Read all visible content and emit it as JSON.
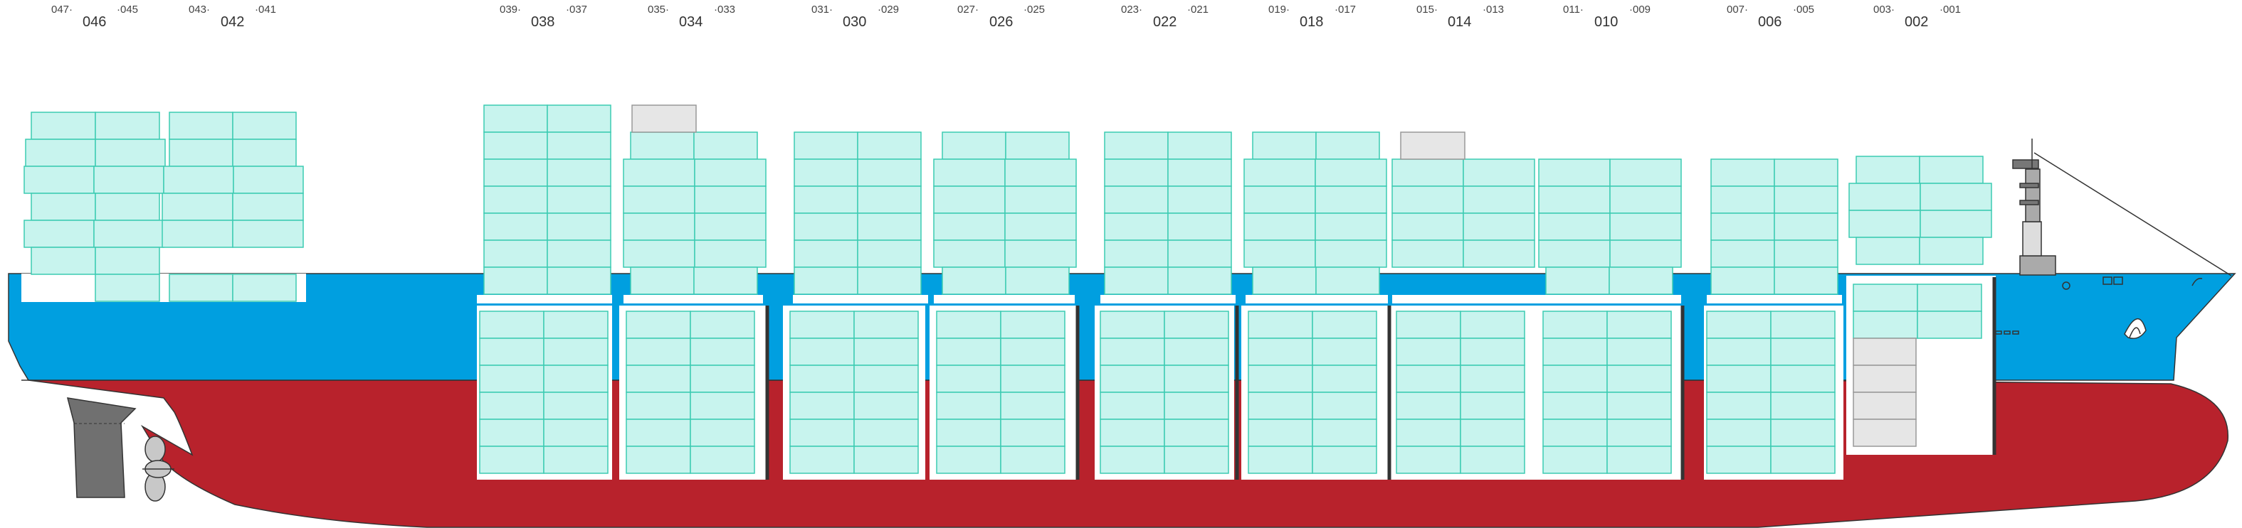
{
  "bays": [
    {
      "main": "046",
      "fwd": "047",
      "aft": "045"
    },
    {
      "main": "042",
      "fwd": "043",
      "aft": "041"
    },
    {
      "main": "038",
      "fwd": "039",
      "aft": "037"
    },
    {
      "main": "034",
      "fwd": "035",
      "aft": "033"
    },
    {
      "main": "030",
      "fwd": "031",
      "aft": "029"
    },
    {
      "main": "026",
      "fwd": "027",
      "aft": "025"
    },
    {
      "main": "022",
      "fwd": "023",
      "aft": "021"
    },
    {
      "main": "018",
      "fwd": "019",
      "aft": "017"
    },
    {
      "main": "014",
      "fwd": "015",
      "aft": "013"
    },
    {
      "main": "010",
      "fwd": "011",
      "aft": "009"
    },
    {
      "main": "006",
      "fwd": "007",
      "aft": "005"
    },
    {
      "main": "002",
      "fwd": "003",
      "aft": "001"
    }
  ],
  "colors": {
    "hull_bottom": "#b8222c",
    "hull_top": "#009fe0",
    "container_fill": "#c8f4ee",
    "container_stroke": "#3ccbb2",
    "empty_slot_fill": "#e6e6e6",
    "empty_slot_stroke": "#999999",
    "hold_fill": "#ffffff",
    "bulkhead": "#333333",
    "rudder": "#707070",
    "propeller": "#c8c8c8"
  },
  "icons": [
    "bridge-tower-icon",
    "propeller-icon",
    "rudder-icon",
    "forecastle-mark-icon"
  ]
}
